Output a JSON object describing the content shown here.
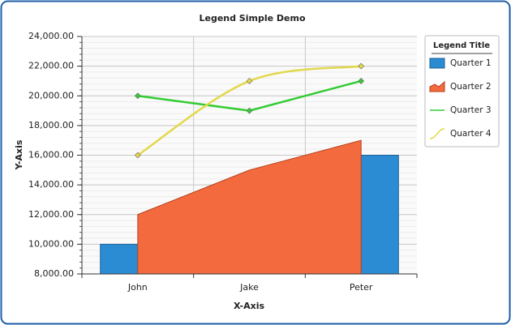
{
  "chart_data": {
    "type": "combo",
    "title": "Legend Simple Demo",
    "x_label": "X-Axis",
    "y_label": "Y-Axis",
    "categories": [
      "John",
      "Jake",
      "Peter"
    ],
    "series": [
      {
        "name": "Quarter 1",
        "type": "bar",
        "color": "#2b8cd4",
        "values": [
          10000,
          12000,
          16000
        ]
      },
      {
        "name": "Quarter 2",
        "type": "area",
        "color": "#f26a3d",
        "values": [
          12000,
          15000,
          17000
        ]
      },
      {
        "name": "Quarter 3",
        "type": "line",
        "color": "#33cc33",
        "values": [
          20000,
          19000,
          21000
        ]
      },
      {
        "name": "Quarter 4",
        "type": "spline",
        "color": "#e2d84c",
        "values": [
          16000,
          21000,
          22000
        ]
      }
    ],
    "ylim": [
      8000,
      24000
    ],
    "yticks": [
      {
        "value": 8000,
        "label": "8,000.00"
      },
      {
        "value": 10000,
        "label": "10,000.00"
      },
      {
        "value": 12000,
        "label": "12,000.00"
      },
      {
        "value": 14000,
        "label": "14,000.00"
      },
      {
        "value": 16000,
        "label": "16,000.00"
      },
      {
        "value": 18000,
        "label": "18,000.00"
      },
      {
        "value": 20000,
        "label": "20,000.00"
      },
      {
        "value": 22000,
        "label": "22,000.00"
      },
      {
        "value": 24000,
        "label": "24,000.00"
      }
    ],
    "grid": true,
    "legend_position": "right",
    "legend_title": "Legend Title"
  }
}
